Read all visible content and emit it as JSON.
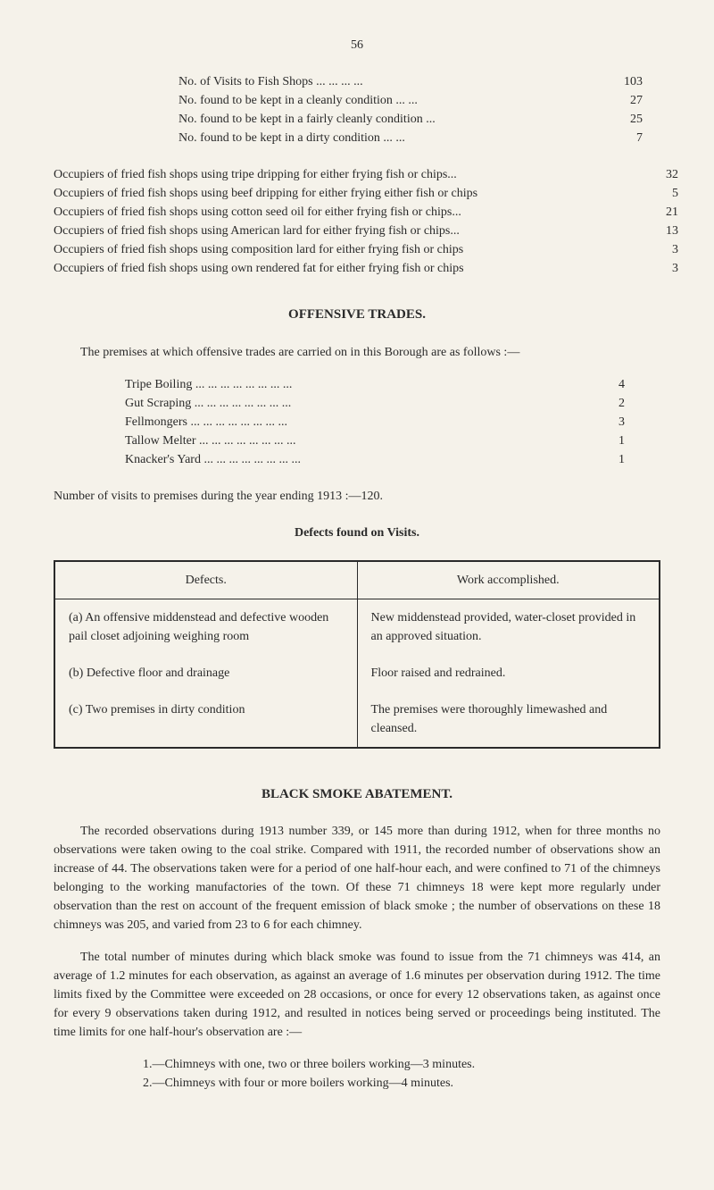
{
  "pageNumber": "56",
  "fishShopList": [
    {
      "label": "No. of Visits to Fish Shops       ...    ...    ...    ...",
      "value": "103"
    },
    {
      "label": "No. found to be kept in a cleanly condition  ...    ...",
      "value": "27"
    },
    {
      "label": "No. found to be kept in a fairly cleanly condition    ...",
      "value": "25"
    },
    {
      "label": "No. found to be kept in a dirty condition       ...    ...",
      "value": "7"
    }
  ],
  "occupiersList": [
    {
      "label": "Occupiers of fried fish shops using tripe dripping for either frying fish or chips...",
      "value": "32"
    },
    {
      "label": "Occupiers of fried fish shops using beef dripping for either frying either fish or chips",
      "value": "5"
    },
    {
      "label": "Occupiers of fried fish shops using cotton seed oil for either frying fish or chips...",
      "value": "21"
    },
    {
      "label": "Occupiers of fried fish shops using American lard for either frying fish or chips...",
      "value": "13"
    },
    {
      "label": "Occupiers of fried fish shops using composition lard for either frying fish or chips",
      "value": "3"
    },
    {
      "label": "Occupiers of fried fish shops using own rendered fat for either frying fish or chips",
      "value": "3"
    }
  ],
  "offensiveHeading": "OFFENSIVE TRADES.",
  "offensiveIntro": "The premises at which offensive trades are carried on in this Borough are as follows :—",
  "tradeList": [
    {
      "label": "Tripe Boiling     ...     ...     ...     ...     ...     ...     ...     ...",
      "value": "4"
    },
    {
      "label": "Gut Scraping     ...     ...     ...     ...     ...     ...     ...     ...",
      "value": "2"
    },
    {
      "label": "Fellmongers       ...     ...     ...     ...     ...     ...     ...     ...",
      "value": "3"
    },
    {
      "label": "Tallow Melter    ...     ...     ...     ...     ...     ...     ...     ...",
      "value": "1"
    },
    {
      "label": "Knacker's Yard ...     ...     ...     ...     ...     ...     ...     ...",
      "value": "1"
    }
  ],
  "visitsNote": "Number of visits to premises during the year ending 1913 :—120.",
  "defectsTableTitle": "Defects found on Visits.",
  "defectsTable": {
    "columns": [
      "Defects.",
      "Work accomplished."
    ],
    "rows": [
      [
        "(a) An offensive middenstead and defective wooden pail closet adjoining weighing room",
        "New middenstead provided, water-closet provided in an approved situation."
      ],
      [
        "(b) Defective floor and drainage",
        "Floor raised and redrained."
      ],
      [
        "(c) Two premises in dirty condition",
        "The premises were thoroughly limewashed and cleansed."
      ]
    ]
  },
  "smokeHeading": "BLACK SMOKE ABATEMENT.",
  "smokePara1": "The recorded observations during 1913 number 339, or 145 more than during 1912, when for three months no observations were taken owing to the coal strike. Compared with 1911, the recorded number of observations show an increase of 44. The observations taken were for a period of one half-hour each, and were confined to 71 of the chimneys belonging to the working manufactories of the town. Of these 71 chimneys 18 were kept more regularly under observation than the rest on account of the frequent emission of black smoke ; the number of observations on these 18 chimneys was 205, and varied from 23 to 6 for each chimney.",
  "smokePara2": "The total number of minutes during which black smoke was found to issue from the 71 chimneys was 414, an average of 1.2 minutes for each observation, as against an average of 1.6 minutes per observation during 1912. The time limits fixed by the Committee were exceeded on 28 occasions, or once for every 12 observations taken, as against once for every 9 observations taken during 1912, and resulted in notices being served or proceedings being instituted. The time limits for one half-hour's observation are :—",
  "smokeItems": [
    "1.—Chimneys with one, two or three boilers working—3 minutes.",
    "2.—Chimneys with four or more boilers working—4 minutes."
  ]
}
